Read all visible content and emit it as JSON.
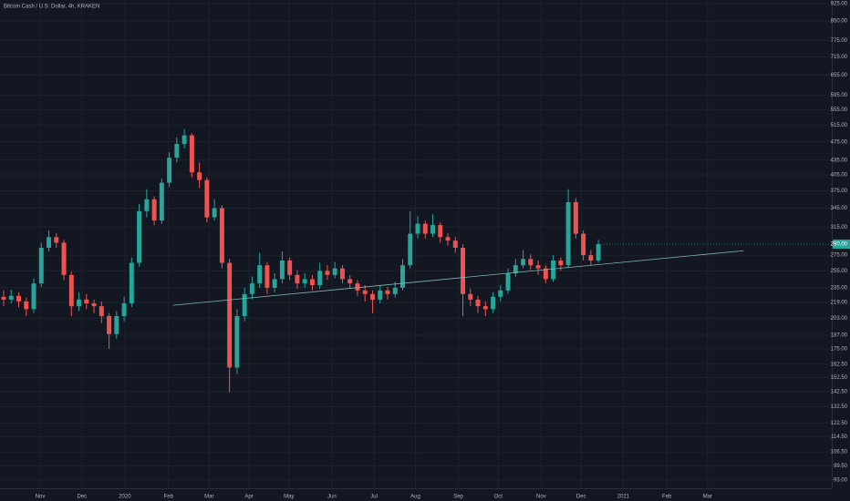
{
  "chart_data": {
    "type": "candlestick",
    "title": "Bitcoin Cash / U.S. Dollar, 4h, KRAKEN",
    "categories": [
      null,
      null,
      null,
      null,
      null,
      null,
      null,
      null,
      null,
      null,
      null,
      null,
      null,
      null,
      null,
      null,
      null,
      null,
      null,
      null,
      null,
      null,
      null,
      null,
      null,
      null,
      null,
      null,
      null,
      null,
      null,
      null,
      null,
      null,
      null,
      null,
      null,
      null,
      null,
      null,
      null,
      null,
      null,
      null,
      null,
      null,
      null,
      null,
      null,
      null,
      null,
      null,
      null,
      null,
      null,
      null,
      null,
      null,
      null,
      null,
      null,
      null,
      null,
      null,
      null,
      null,
      null,
      null,
      null,
      null,
      null,
      null,
      null,
      null,
      null,
      null,
      null,
      null,
      null,
      null
    ],
    "open": [
      225,
      222,
      226,
      220,
      212,
      240,
      285,
      300,
      292,
      250,
      215,
      222,
      218,
      215,
      205,
      188,
      205,
      218,
      265,
      340,
      360,
      325,
      390,
      440,
      470,
      490,
      410,
      395,
      330,
      345,
      265,
      160,
      205,
      228,
      240,
      262,
      235,
      245,
      268,
      250,
      240,
      245,
      238,
      255,
      250,
      258,
      245,
      240,
      232,
      228,
      222,
      232,
      228,
      235,
      262,
      305,
      320,
      305,
      318,
      300,
      295,
      285,
      228,
      222,
      215,
      212,
      225,
      232,
      252,
      262,
      270,
      262,
      258,
      245,
      268,
      262,
      355,
      305,
      275,
      268
    ],
    "high": [
      232,
      233,
      230,
      224,
      246,
      292,
      310,
      306,
      296,
      254,
      230,
      228,
      222,
      220,
      208,
      210,
      225,
      272,
      352,
      378,
      365,
      398,
      452,
      485,
      505,
      495,
      430,
      400,
      360,
      350,
      270,
      212,
      235,
      248,
      278,
      266,
      252,
      280,
      272,
      256,
      252,
      250,
      265,
      262,
      266,
      262,
      250,
      244,
      238,
      232,
      238,
      236,
      242,
      270,
      340,
      332,
      325,
      335,
      322,
      306,
      300,
      290,
      234,
      226,
      220,
      230,
      238,
      258,
      270,
      282,
      276,
      268,
      262,
      275,
      272,
      378,
      362,
      310,
      282,
      296
    ],
    "low": [
      215,
      218,
      214,
      205,
      208,
      236,
      280,
      285,
      244,
      205,
      210,
      212,
      208,
      198,
      175,
      184,
      200,
      214,
      260,
      330,
      318,
      320,
      382,
      430,
      460,
      400,
      380,
      322,
      325,
      258,
      142,
      155,
      200,
      222,
      235,
      228,
      230,
      240,
      244,
      234,
      235,
      232,
      234,
      244,
      246,
      240,
      234,
      226,
      220,
      208,
      218,
      222,
      224,
      232,
      258,
      298,
      298,
      300,
      292,
      288,
      278,
      205,
      215,
      208,
      205,
      208,
      220,
      228,
      248,
      258,
      256,
      250,
      240,
      242,
      255,
      258,
      298,
      268,
      262,
      265
    ],
    "close": [
      222,
      226,
      220,
      212,
      240,
      285,
      300,
      292,
      250,
      215,
      222,
      218,
      215,
      205,
      188,
      205,
      218,
      265,
      340,
      360,
      325,
      390,
      440,
      470,
      490,
      410,
      395,
      330,
      345,
      265,
      160,
      205,
      228,
      240,
      262,
      235,
      245,
      268,
      250,
      240,
      245,
      238,
      255,
      250,
      258,
      245,
      240,
      232,
      228,
      222,
      232,
      228,
      235,
      262,
      305,
      320,
      305,
      318,
      300,
      295,
      285,
      228,
      222,
      215,
      212,
      225,
      232,
      252,
      262,
      270,
      262,
      258,
      245,
      268,
      262,
      355,
      305,
      275,
      268,
      290
    ],
    "close_label": "290.00",
    "up_color": "#26a69a",
    "down_color": "#ef5350",
    "trendline": {
      "x": [
        22.5,
        98.3
      ],
      "y": [
        216,
        281
      ],
      "color": "#7fb6b8"
    },
    "xlim": [
      -0.485,
      110
    ],
    "xticks": [
      {
        "value": 4.85,
        "label": "Nov"
      },
      {
        "value": 10.4,
        "label": "Dec"
      },
      {
        "value": 16.1,
        "label": "2020"
      },
      {
        "value": 21.9,
        "label": "Feb"
      },
      {
        "value": 27.3,
        "label": "Mar"
      },
      {
        "value": 32.6,
        "label": "Apr"
      },
      {
        "value": 37.9,
        "label": "May"
      },
      {
        "value": 43.6,
        "label": "Jun"
      },
      {
        "value": 49.2,
        "label": "Jul"
      },
      {
        "value": 54.7,
        "label": "Aug"
      },
      {
        "value": 60.4,
        "label": "Sep"
      },
      {
        "value": 65.7,
        "label": "Oct"
      },
      {
        "value": 71.4,
        "label": "Nov"
      },
      {
        "value": 76.7,
        "label": "Dec"
      },
      {
        "value": 82.3,
        "label": "2021"
      },
      {
        "value": 88.1,
        "label": "Feb"
      },
      {
        "value": 93.5,
        "label": "Mar"
      }
    ],
    "ylim": [
      89.4,
      941
    ],
    "log_scale": true,
    "grid": true,
    "yticks": [
      {
        "value": 925,
        "label": "925.00"
      },
      {
        "value": 850,
        "label": "850.00"
      },
      {
        "value": 775,
        "label": "775.00"
      },
      {
        "value": 715,
        "label": "715.00"
      },
      {
        "value": 655,
        "label": "655.00"
      },
      {
        "value": 595,
        "label": "595.00"
      },
      {
        "value": 555,
        "label": "555.00"
      },
      {
        "value": 515,
        "label": "515.00"
      },
      {
        "value": 475,
        "label": "475.00"
      },
      {
        "value": 435,
        "label": "435.00"
      },
      {
        "value": 405,
        "label": "405.00"
      },
      {
        "value": 375,
        "label": "375.00"
      },
      {
        "value": 345,
        "label": "345.00"
      },
      {
        "value": 315,
        "label": "315.00"
      },
      {
        "value": 275,
        "label": "275.00"
      },
      {
        "value": 255,
        "label": "255.00"
      },
      {
        "value": 235,
        "label": "235.00"
      },
      {
        "value": 219,
        "label": "219.00"
      },
      {
        "value": 203,
        "label": "203.00"
      },
      {
        "value": 187,
        "label": "187.00"
      },
      {
        "value": 175,
        "label": "175.00"
      },
      {
        "value": 162.5,
        "label": "162.50"
      },
      {
        "value": 152.5,
        "label": "152.50"
      },
      {
        "value": 142.5,
        "label": "142.50"
      },
      {
        "value": 132.5,
        "label": "132.50"
      },
      {
        "value": 122.5,
        "label": "122.50"
      },
      {
        "value": 114.5,
        "label": "114.50"
      },
      {
        "value": 106.5,
        "label": "106.50"
      },
      {
        "value": 99.5,
        "label": "99.50"
      },
      {
        "value": 93,
        "label": "93.00"
      }
    ]
  }
}
